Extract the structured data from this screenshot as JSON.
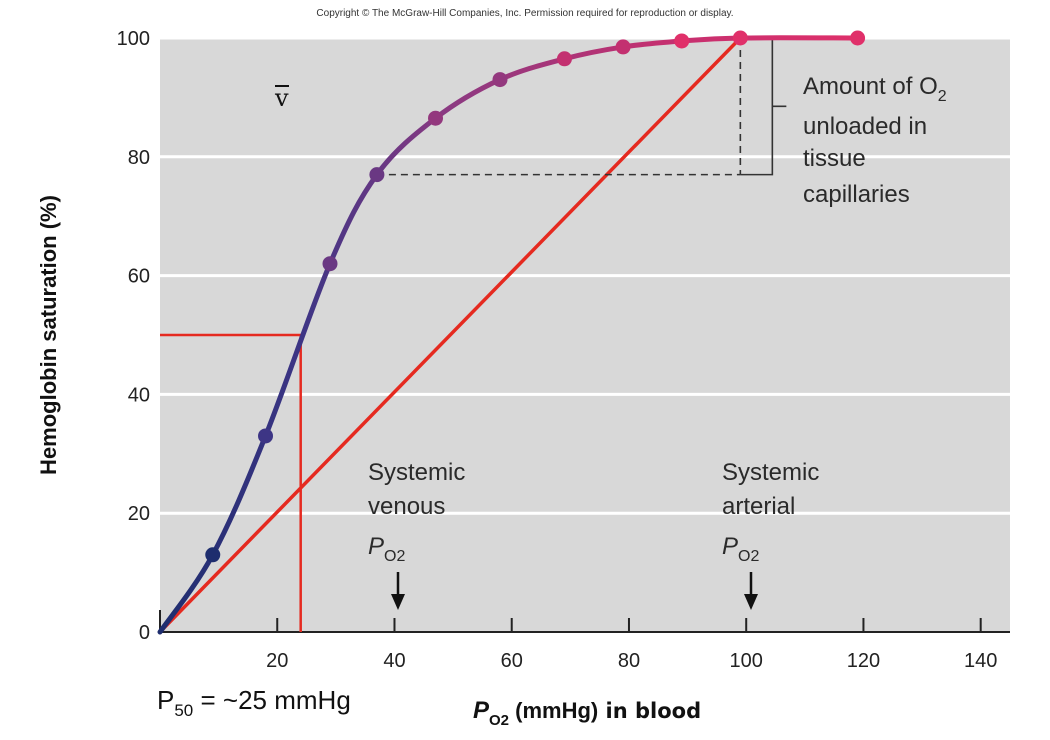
{
  "copyright": "Copyright © The McGraw-Hill Companies, Inc. Permission required for reproduction or display.",
  "chart_data": {
    "type": "line",
    "ylabel": "Hemoglobin saturation (%)",
    "xlabel_main": "P",
    "xlabel_sub": "O2",
    "xlabel_units": " (mmHg)",
    "xlabel_suffix": " in blood",
    "xlim": [
      0,
      145
    ],
    "ylim": [
      0,
      100
    ],
    "x_ticks": [
      "20",
      "40",
      "60",
      "80",
      "100",
      "120",
      "140"
    ],
    "y_ticks": [
      "0",
      "20",
      "40",
      "60",
      "80",
      "100"
    ],
    "grid": "horizontal",
    "series": [
      {
        "x": [
          0,
          9,
          18,
          29,
          37,
          47,
          58,
          69,
          79,
          89,
          99,
          119
        ],
        "y": [
          0,
          13,
          33,
          62,
          77,
          86.5,
          93,
          96.5,
          98.5,
          99.5,
          100,
          100
        ]
      }
    ],
    "reference_line": {
      "x": [
        0,
        99
      ],
      "y": [
        0,
        100
      ]
    },
    "p50_marker": {
      "x": 24,
      "y": 50
    },
    "unloading": {
      "x_venous": 37,
      "x_arterial": 99,
      "y_venous": 77,
      "y_arterial": 100
    },
    "venous_label": [
      "Systemic",
      "venous"
    ],
    "arterial_label": [
      "Systemic",
      "arterial"
    ],
    "po2_p": "P",
    "po2_sub": "O2",
    "unload_label_line1_main": "Amount of O",
    "unload_label_line1_sub": "2",
    "unload_label_rest": [
      "unloaded in",
      "tissue",
      "capillaries"
    ],
    "v_symbol": "v",
    "p50_main": "P",
    "p50_sub": "50",
    "p50_rest": " = ~25 mmHg"
  }
}
